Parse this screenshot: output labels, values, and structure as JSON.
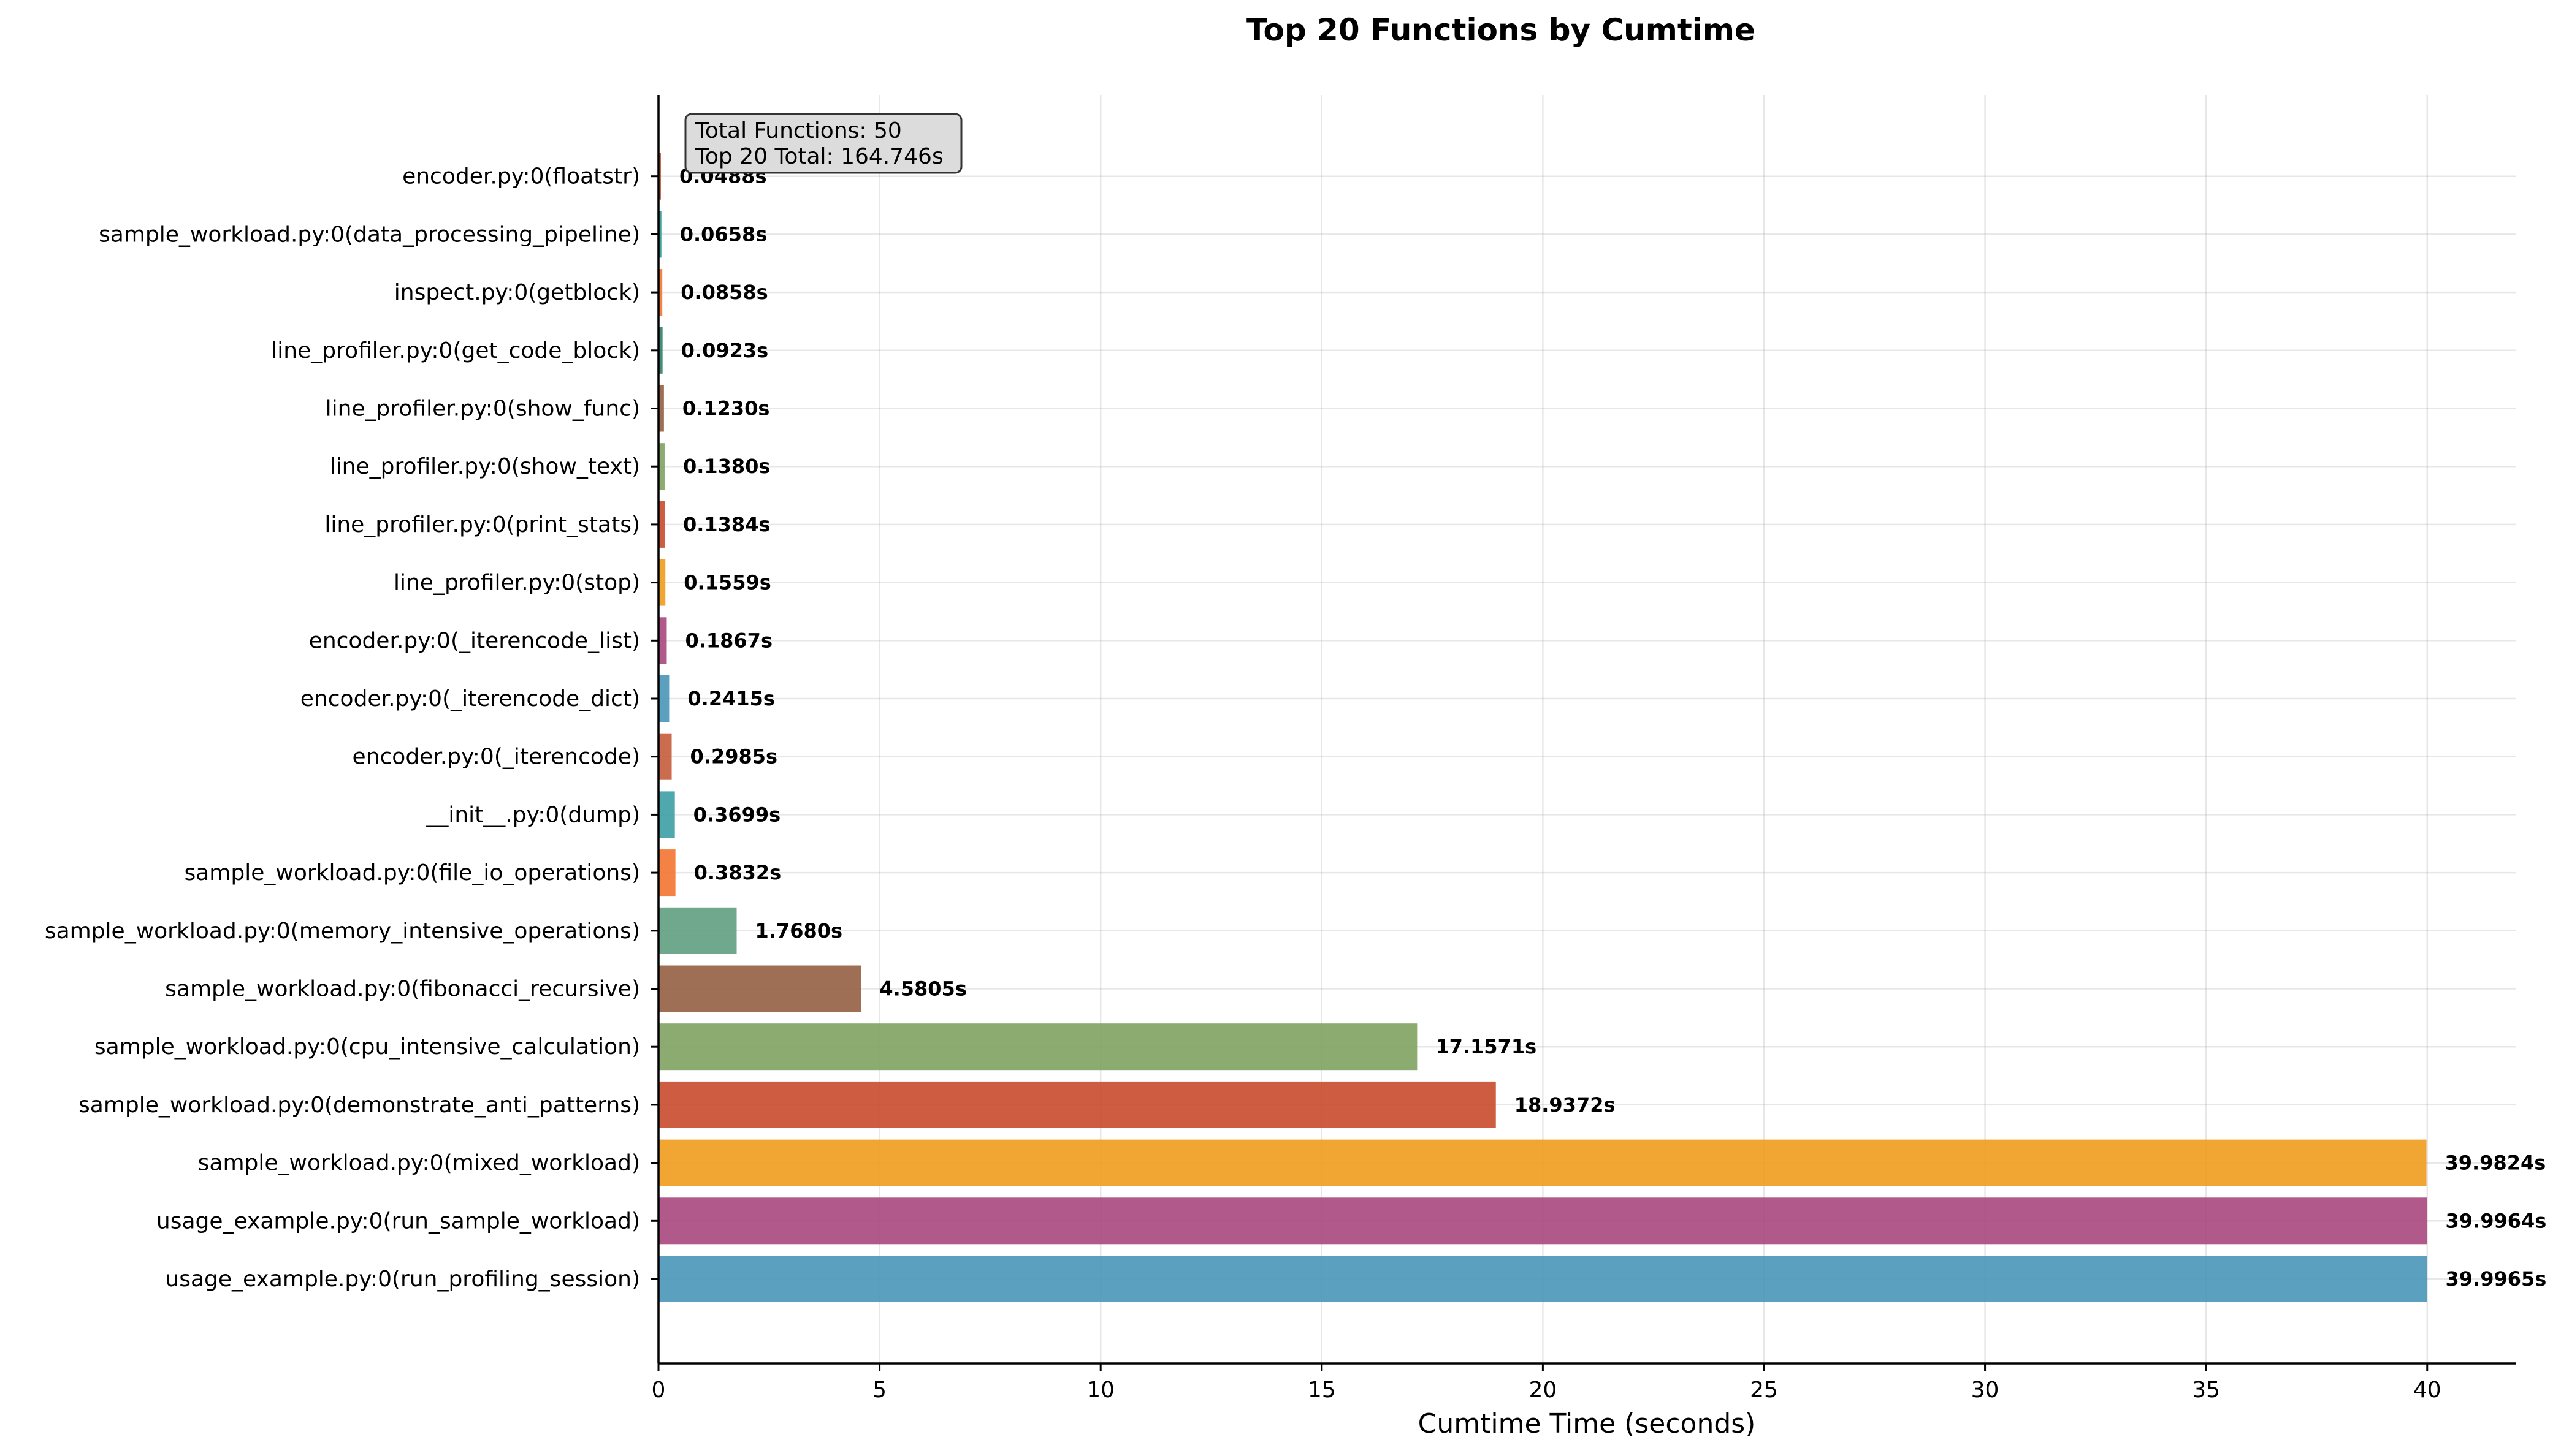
{
  "chart_data": {
    "type": "bar",
    "orientation": "horizontal",
    "title": "Top 20 Functions by Cumtime",
    "xlabel": "Cumtime Time (seconds)",
    "ylabel": "",
    "xlim": [
      0,
      42
    ],
    "xticks": [
      0,
      5,
      10,
      15,
      20,
      25,
      30,
      35,
      40
    ],
    "grid": true,
    "legend": null,
    "info_box": {
      "lines": [
        "Total Functions: 50",
        "Top 20 Total: 164.746s"
      ],
      "placement": "top-left"
    },
    "categories": [
      "usage_example.py:0(run_profiling_session)",
      "usage_example.py:0(run_sample_workload)",
      "sample_workload.py:0(mixed_workload)",
      "sample_workload.py:0(demonstrate_anti_patterns)",
      "sample_workload.py:0(cpu_intensive_calculation)",
      "sample_workload.py:0(fibonacci_recursive)",
      "sample_workload.py:0(memory_intensive_operations)",
      "sample_workload.py:0(file_io_operations)",
      "__init__.py:0(dump)",
      "encoder.py:0(_iterencode)",
      "encoder.py:0(_iterencode_dict)",
      "encoder.py:0(_iterencode_list)",
      "line_profiler.py:0(stop)",
      "line_profiler.py:0(print_stats)",
      "line_profiler.py:0(show_text)",
      "line_profiler.py:0(show_func)",
      "line_profiler.py:0(get_code_block)",
      "inspect.py:0(getblock)",
      "sample_workload.py:0(data_processing_pipeline)",
      "encoder.py:0(floatstr)"
    ],
    "values": [
      39.9965,
      39.9964,
      39.9824,
      18.9372,
      17.1571,
      4.5805,
      1.768,
      0.3832,
      0.3699,
      0.2985,
      0.2415,
      0.1867,
      0.1559,
      0.1384,
      0.138,
      0.123,
      0.0923,
      0.0858,
      0.0658,
      0.0488
    ],
    "value_labels": [
      "39.9965s",
      "39.9964s",
      "39.9824s",
      "18.9372s",
      "17.1571s",
      "4.5805s",
      "1.7680s",
      "0.3832s",
      "0.3699s",
      "0.2985s",
      "0.2415s",
      "0.1867s",
      "0.1559s",
      "0.1384s",
      "0.1380s",
      "0.1230s",
      "0.0923s",
      "0.0858s",
      "0.0658s",
      "0.0488s"
    ],
    "colors": [
      "#4a96b9",
      "#a9477d",
      "#f09c1e",
      "#c94a2b",
      "#7ea261",
      "#935f43",
      "#5f9f80",
      "#f27430",
      "#3b9ea5",
      "#c65c3c",
      "#4a96b9",
      "#a9477d",
      "#f09c1e",
      "#c94a2b",
      "#7ea261",
      "#935f43",
      "#2f7f6d",
      "#f27430",
      "#2a9a96",
      "#c65c3c"
    ]
  }
}
